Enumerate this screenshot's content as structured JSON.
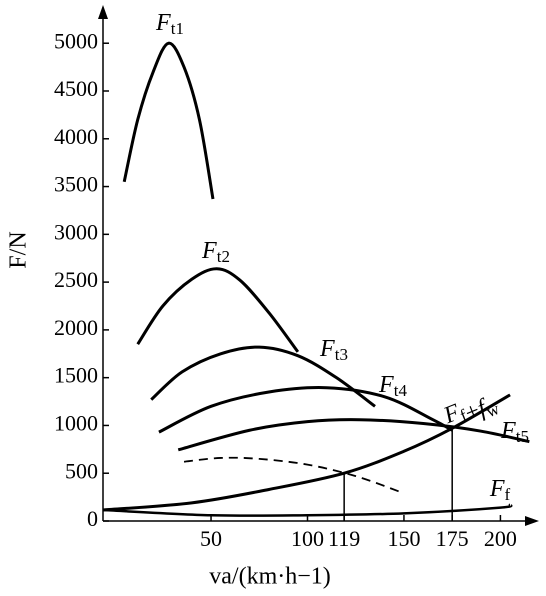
{
  "chart_data": {
    "type": "line",
    "xlabel": "va/(km·h−1)",
    "ylabel": "F/N",
    "xlim": [
      -6,
      220
    ],
    "ylim": [
      0,
      5400
    ],
    "xticks": [
      50,
      100,
      119,
      150,
      175,
      200
    ],
    "yticks": [
      0,
      500,
      1000,
      1500,
      2000,
      2500,
      3000,
      3500,
      4000,
      4500,
      5000
    ],
    "series": [
      {
        "name": "Ft1",
        "color": "#000000",
        "x": [
          5,
          12,
          20,
          28,
          36,
          44,
          51
        ],
        "values": [
          3550,
          4200,
          4700,
          5000,
          4750,
          4200,
          3370
        ]
      },
      {
        "name": "Ft2",
        "color": "#000000",
        "x": [
          12,
          25,
          40,
          53,
          65,
          80,
          95
        ],
        "values": [
          1850,
          2250,
          2530,
          2640,
          2520,
          2180,
          1770
        ]
      },
      {
        "name": "Ft3",
        "color": "#000000",
        "x": [
          19,
          35,
          55,
          75,
          95,
          115,
          135
        ],
        "values": [
          1270,
          1560,
          1750,
          1820,
          1730,
          1500,
          1200
        ]
      },
      {
        "name": "Ft4",
        "color": "#000000",
        "x": [
          23,
          50,
          80,
          110,
          140,
          165,
          175
        ],
        "values": [
          930,
          1200,
          1350,
          1395,
          1300,
          1060,
          950
        ]
      },
      {
        "name": "Ft5",
        "color": "#000000",
        "x": [
          33,
          70,
          100,
          127,
          160,
          190,
          215
        ],
        "values": [
          745,
          950,
          1040,
          1060,
          1020,
          940,
          830
        ]
      },
      {
        "color": "#000000",
        "dashed": true,
        "x": [
          36,
          55,
          75,
          100,
          125,
          148
        ],
        "values": [
          620,
          660,
          650,
          590,
          470,
          305
        ]
      },
      {
        "name": "Ff",
        "color": "#000000",
        "x": [
          -6,
          50,
          100,
          150,
          200,
          205
        ],
        "values": [
          115,
          60,
          60,
          80,
          140,
          170
        ]
      },
      {
        "name": "Ff+fw",
        "color": "#000000",
        "x": [
          -6,
          40,
          80,
          119,
          150,
          175,
          205
        ],
        "values": [
          115,
          190,
          330,
          500,
          730,
          970,
          1320
        ]
      }
    ],
    "markers": [
      {
        "x": 119,
        "y": 500
      },
      {
        "x": 175,
        "y": 970
      }
    ]
  }
}
